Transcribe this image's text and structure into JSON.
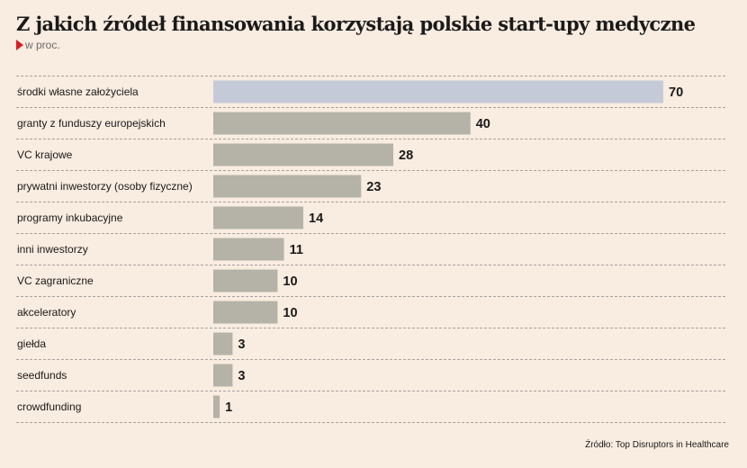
{
  "chart_data": {
    "type": "bar",
    "orientation": "horizontal",
    "title": "Z jakich źródeł finansowania korzystają polskie start-upy medyczne",
    "subtitle": "w proc.",
    "categories": [
      "środki własne założyciela",
      "granty z funduszy europejskich",
      "VC krajowe",
      "prywatni inwestorzy (osoby fizyczne)",
      "programy inkubacyjne",
      "inni inwestorzy",
      "VC zagraniczne",
      "akceleratory",
      "giełda",
      "seedfunds",
      "crowdfunding"
    ],
    "values": [
      70,
      40,
      28,
      23,
      14,
      11,
      10,
      10,
      3,
      3,
      1
    ],
    "xlim": [
      0,
      70
    ],
    "grid": false,
    "colors": {
      "highlight_bar": "#c5cad9",
      "bar": "#b5b3a7",
      "accent": "#d51f26",
      "background": "#f9ece0"
    },
    "source": "Źródło: Top Disruptors in Healthcare"
  }
}
